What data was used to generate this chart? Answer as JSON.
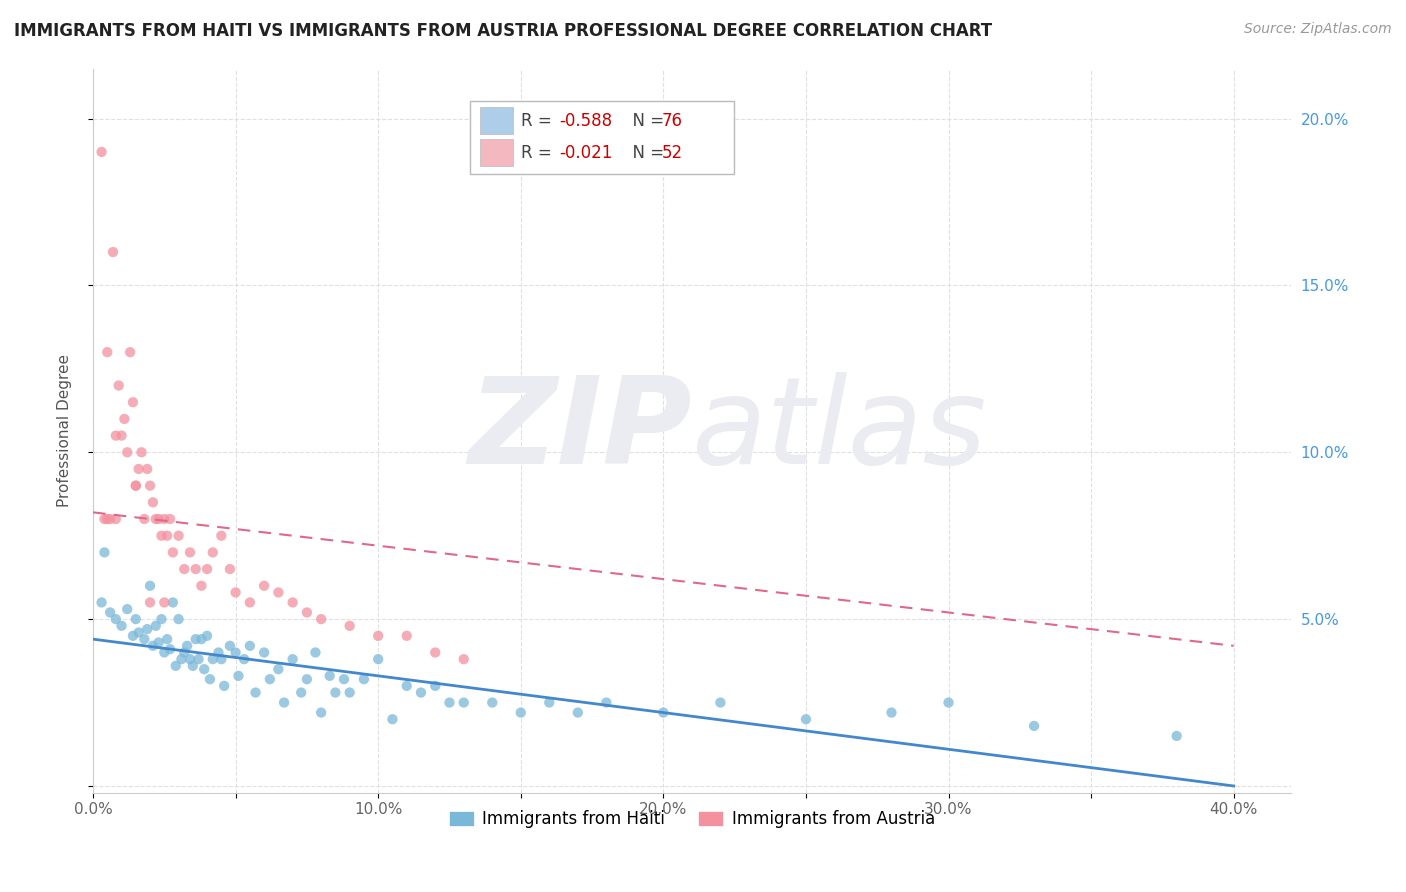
{
  "title": "IMMIGRANTS FROM HAITI VS IMMIGRANTS FROM AUSTRIA PROFESSIONAL DEGREE CORRELATION CHART",
  "source": "Source: ZipAtlas.com",
  "ylabel": "Professional Degree",
  "xlim": [
    0.0,
    0.42
  ],
  "ylim": [
    -0.002,
    0.215
  ],
  "xtick_values": [
    0.0,
    0.05,
    0.1,
    0.15,
    0.2,
    0.25,
    0.3,
    0.35,
    0.4
  ],
  "xtick_labels": [
    "0.0%",
    "",
    "10.0%",
    "",
    "20.0%",
    "",
    "30.0%",
    "",
    "40.0%"
  ],
  "ytick_values": [
    0.0,
    0.05,
    0.1,
    0.15,
    0.2
  ],
  "ytick_labels_left": [
    "",
    "",
    "",
    "",
    ""
  ],
  "ytick_labels_right": [
    "",
    "5.0%",
    "10.0%",
    "15.0%",
    "20.0%"
  ],
  "haiti_color": "#7ab8d9",
  "austria_color": "#f4919e",
  "haiti_R": "-0.588",
  "haiti_N": "76",
  "austria_R": "-0.021",
  "austria_N": "52",
  "haiti_trendline": [
    0.0,
    0.044,
    0.4,
    0.0
  ],
  "austria_trendline": [
    0.0,
    0.082,
    0.4,
    0.042
  ],
  "haiti_scatter_x": [
    0.003,
    0.006,
    0.008,
    0.01,
    0.012,
    0.014,
    0.015,
    0.016,
    0.018,
    0.019,
    0.02,
    0.021,
    0.022,
    0.023,
    0.024,
    0.025,
    0.026,
    0.027,
    0.028,
    0.029,
    0.03,
    0.031,
    0.032,
    0.033,
    0.034,
    0.035,
    0.036,
    0.037,
    0.038,
    0.039,
    0.04,
    0.041,
    0.042,
    0.044,
    0.045,
    0.046,
    0.048,
    0.05,
    0.051,
    0.053,
    0.055,
    0.057,
    0.06,
    0.062,
    0.065,
    0.067,
    0.07,
    0.073,
    0.075,
    0.078,
    0.08,
    0.083,
    0.085,
    0.088,
    0.09,
    0.095,
    0.1,
    0.105,
    0.11,
    0.115,
    0.12,
    0.125,
    0.13,
    0.14,
    0.15,
    0.16,
    0.17,
    0.18,
    0.2,
    0.22,
    0.25,
    0.28,
    0.3,
    0.33,
    0.38,
    0.004
  ],
  "haiti_scatter_y": [
    0.055,
    0.052,
    0.05,
    0.048,
    0.053,
    0.045,
    0.05,
    0.046,
    0.044,
    0.047,
    0.06,
    0.042,
    0.048,
    0.043,
    0.05,
    0.04,
    0.044,
    0.041,
    0.055,
    0.036,
    0.05,
    0.038,
    0.04,
    0.042,
    0.038,
    0.036,
    0.044,
    0.038,
    0.044,
    0.035,
    0.045,
    0.032,
    0.038,
    0.04,
    0.038,
    0.03,
    0.042,
    0.04,
    0.033,
    0.038,
    0.042,
    0.028,
    0.04,
    0.032,
    0.035,
    0.025,
    0.038,
    0.028,
    0.032,
    0.04,
    0.022,
    0.033,
    0.028,
    0.032,
    0.028,
    0.032,
    0.038,
    0.02,
    0.03,
    0.028,
    0.03,
    0.025,
    0.025,
    0.025,
    0.022,
    0.025,
    0.022,
    0.025,
    0.022,
    0.025,
    0.02,
    0.022,
    0.025,
    0.018,
    0.015,
    0.07
  ],
  "austria_scatter_x": [
    0.003,
    0.004,
    0.005,
    0.006,
    0.007,
    0.008,
    0.009,
    0.01,
    0.011,
    0.012,
    0.013,
    0.014,
    0.015,
    0.016,
    0.017,
    0.018,
    0.019,
    0.02,
    0.021,
    0.022,
    0.023,
    0.024,
    0.025,
    0.026,
    0.027,
    0.028,
    0.03,
    0.032,
    0.034,
    0.036,
    0.038,
    0.04,
    0.042,
    0.045,
    0.048,
    0.05,
    0.055,
    0.06,
    0.065,
    0.07,
    0.075,
    0.08,
    0.09,
    0.1,
    0.11,
    0.12,
    0.13,
    0.005,
    0.008,
    0.015,
    0.02,
    0.025
  ],
  "austria_scatter_y": [
    0.19,
    0.08,
    0.13,
    0.08,
    0.16,
    0.105,
    0.12,
    0.105,
    0.11,
    0.1,
    0.13,
    0.115,
    0.09,
    0.095,
    0.1,
    0.08,
    0.095,
    0.09,
    0.085,
    0.08,
    0.08,
    0.075,
    0.08,
    0.075,
    0.08,
    0.07,
    0.075,
    0.065,
    0.07,
    0.065,
    0.06,
    0.065,
    0.07,
    0.075,
    0.065,
    0.058,
    0.055,
    0.06,
    0.058,
    0.055,
    0.052,
    0.05,
    0.048,
    0.045,
    0.045,
    0.04,
    0.038,
    0.08,
    0.08,
    0.09,
    0.055,
    0.055
  ],
  "background_color": "#ffffff",
  "grid_color": "#e0e0e0",
  "watermark_zip": "ZIP",
  "watermark_atlas": "atlas",
  "watermark_color": "#ebebf2",
  "legend_haiti_color": "#aecde8",
  "legend_austria_color": "#f4b8c0",
  "legend_edge_color": "#bbbbbb",
  "r_color": "#cc0000",
  "n_color": "#cc0000"
}
